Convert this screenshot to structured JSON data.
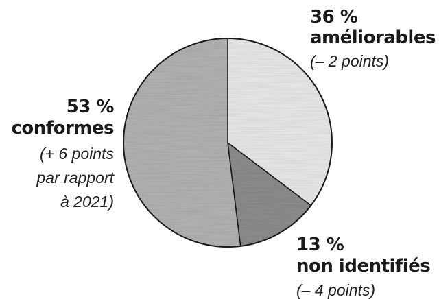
{
  "chart_data": {
    "type": "pie",
    "slices": [
      {
        "label": "améliorables",
        "value": 36,
        "value_text": "36 %",
        "note_lines": [
          "(– 2 points)"
        ],
        "color": "#e9e9e9"
      },
      {
        "label": "non identifiés",
        "value": 13,
        "value_text": "13 %",
        "note_lines": [
          "(– 4 points)"
        ],
        "color": "#8d8d8d"
      },
      {
        "label": "conformes",
        "value": 53,
        "value_text": "53 %",
        "note_lines": [
          "(+ 6 points",
          "par rapport",
          "à 2021)"
        ],
        "color": "#b3b3b3"
      }
    ],
    "start_angle_deg": 0,
    "direction": "clockwise"
  }
}
